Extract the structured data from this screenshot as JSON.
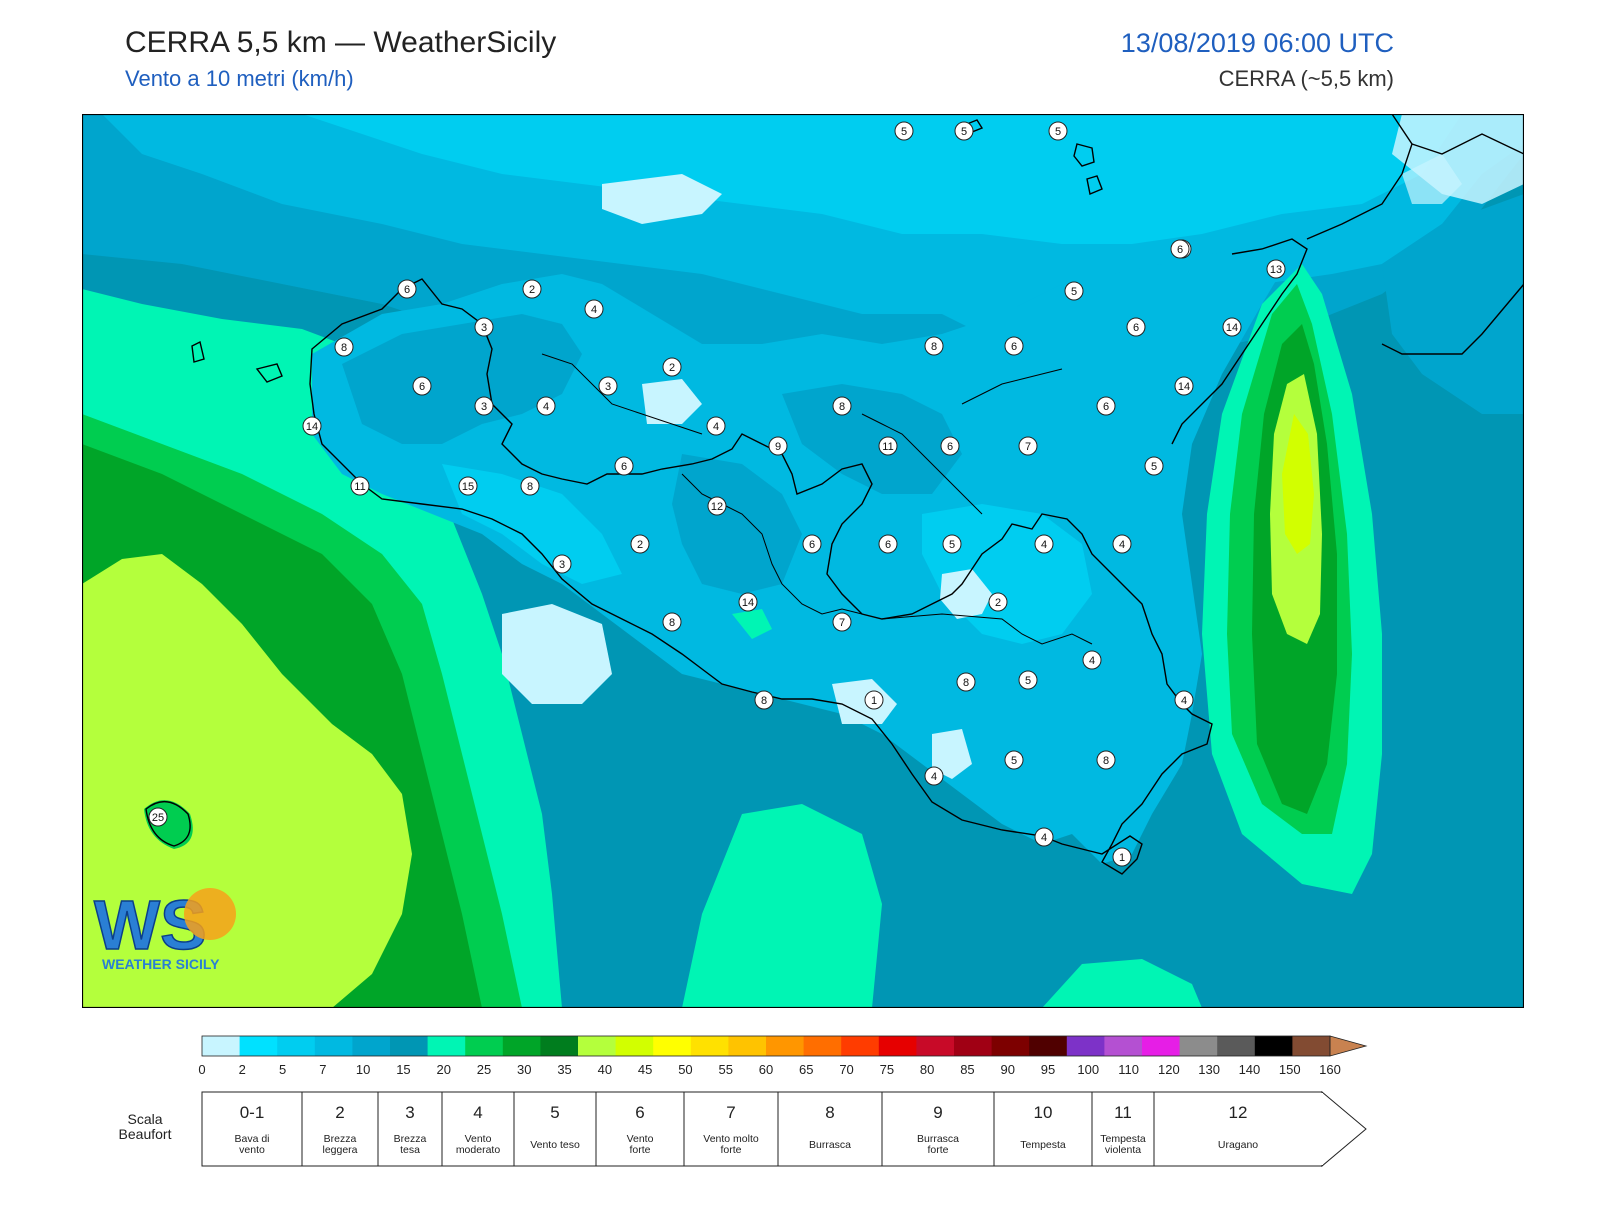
{
  "header": {
    "title": "CERRA 5,5 km — WeatherSicily",
    "subtitle": "Vento a 10 metri (km/h)",
    "datetime": "13/08/2019 06:00 UTC",
    "model": "CERRA (~5,5 km)"
  },
  "logo": {
    "letters": "WS",
    "text": "WEATHER SICILY"
  },
  "colorbar": {
    "ticks": [
      "0",
      "2",
      "5",
      "7",
      "10",
      "15",
      "20",
      "25",
      "30",
      "35",
      "40",
      "45",
      "50",
      "55",
      "60",
      "65",
      "70",
      "75",
      "80",
      "85",
      "90",
      "95",
      "100",
      "110",
      "120",
      "130",
      "140",
      "150",
      "160"
    ],
    "colors": [
      "#c8f5ff",
      "#00e1ff",
      "#00cdf0",
      "#00b9e1",
      "#00a5cd",
      "#0096b4",
      "#00f5b4",
      "#00cd50",
      "#00a528",
      "#007d1e",
      "#b4ff3c",
      "#d2ff00",
      "#ffff00",
      "#ffe100",
      "#ffc300",
      "#ff9600",
      "#ff6e00",
      "#ff3c00",
      "#e60000",
      "#c80a28",
      "#a00014",
      "#7d0000",
      "#500000",
      "#7d32c8",
      "#b450d2",
      "#e61ee6",
      "#8c8c8c",
      "#5a5a5a",
      "#000000",
      "#824b32",
      "#c88250"
    ]
  },
  "beaufort": {
    "label": "Scala Beaufort",
    "classes": [
      {
        "num": "0-1",
        "desc": "Bava di vento"
      },
      {
        "num": "2",
        "desc": "Brezza leggera"
      },
      {
        "num": "3",
        "desc": "Brezza tesa"
      },
      {
        "num": "4",
        "desc": "Vento moderato"
      },
      {
        "num": "5",
        "desc": "Vento teso"
      },
      {
        "num": "6",
        "desc": "Vento forte"
      },
      {
        "num": "7",
        "desc": "Vento molto forte"
      },
      {
        "num": "8",
        "desc": "Burrasca"
      },
      {
        "num": "9",
        "desc": "Burrasca forte"
      },
      {
        "num": "10",
        "desc": "Tempesta"
      },
      {
        "num": "11",
        "desc": "Tempesta violenta"
      },
      {
        "num": "12",
        "desc": "Uragano"
      }
    ]
  },
  "stations": [
    "6",
    "2",
    "4",
    "3",
    "8",
    "6",
    "3",
    "4",
    "3",
    "2",
    "4",
    "14",
    "11",
    "15",
    "8",
    "6",
    "12",
    "9",
    "8",
    "11",
    "6",
    "7",
    "5",
    "5",
    "6",
    "8",
    "5",
    "6",
    "5",
    "14",
    "14",
    "6",
    "13",
    "6",
    "2",
    "3",
    "8",
    "14",
    "7",
    "6",
    "6",
    "5",
    "2",
    "4",
    "4",
    "8",
    "1",
    "4",
    "8",
    "5",
    "4",
    "4",
    "5",
    "8",
    "4",
    "1",
    "25",
    "5",
    "6"
  ],
  "colors": {
    "land_outline": "#000000",
    "accent": "#1f5fbf"
  }
}
